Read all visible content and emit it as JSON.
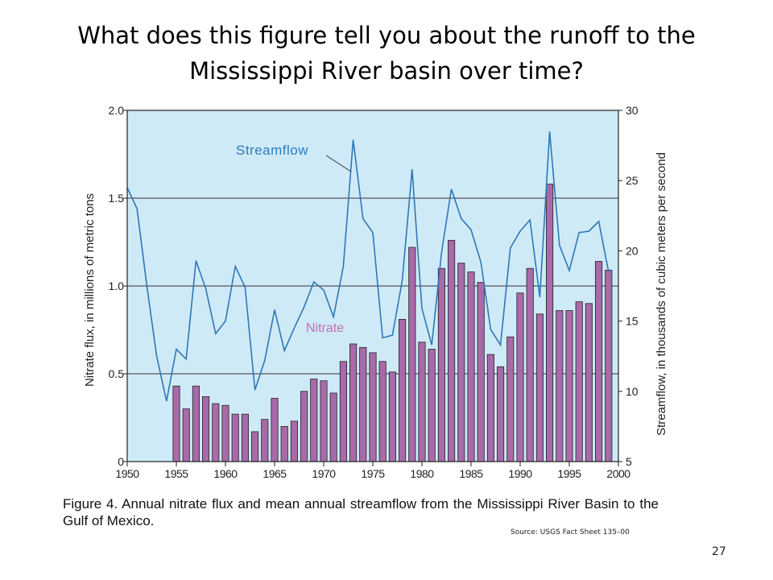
{
  "slide": {
    "title_line1": "What does this figure tell you about the runoff to the",
    "title_line2": "Mississippi River basin over time?",
    "caption": "Figure 4.  Annual nitrate flux and mean annual streamflow from the Mississippi River Basin to the Gulf of Mexico.",
    "source": "Source:  USGS Fact Sheet 135–00",
    "page_number": "27"
  },
  "chart_data": {
    "type": "bar",
    "title": "",
    "xlabel": "",
    "ylabel": "Nitrate flux, in millions of metric tons",
    "y2label": "Streamflow, in thousands of cubic meters per second",
    "xlim": [
      1950,
      2000
    ],
    "ylim": [
      0,
      2.0
    ],
    "y2lim": [
      5,
      30
    ],
    "x_ticks": [
      "1950",
      "1955",
      "1960",
      "1965",
      "1970",
      "1975",
      "1980",
      "1985",
      "1990",
      "1995",
      "2000"
    ],
    "y_ticks": [
      "0",
      "0.5",
      "1.0",
      "1.5",
      "2.0"
    ],
    "y2_ticks": [
      "5",
      "10",
      "15",
      "20",
      "25",
      "30"
    ],
    "gridlines_y": [
      0.5,
      1.0,
      1.5
    ],
    "background_color": "#cfeaf7",
    "series": [
      {
        "name": "Nitrate",
        "kind": "bar",
        "axis": "left",
        "color": "#a86aa8",
        "label_color": "#c070b0",
        "x": [
          1955,
          1956,
          1957,
          1958,
          1959,
          1960,
          1961,
          1962,
          1963,
          1964,
          1965,
          1966,
          1967,
          1968,
          1969,
          1970,
          1971,
          1972,
          1973,
          1974,
          1975,
          1976,
          1977,
          1978,
          1979,
          1980,
          1981,
          1982,
          1983,
          1984,
          1985,
          1986,
          1987,
          1988,
          1989,
          1990,
          1991,
          1992,
          1993,
          1994,
          1995,
          1996,
          1997,
          1998,
          1999
        ],
        "values": [
          0.43,
          0.3,
          0.43,
          0.37,
          0.33,
          0.32,
          0.27,
          0.27,
          0.17,
          0.24,
          0.36,
          0.2,
          0.23,
          0.4,
          0.47,
          0.46,
          0.39,
          0.57,
          0.67,
          0.65,
          0.62,
          0.57,
          0.51,
          0.81,
          1.22,
          0.68,
          0.64,
          1.1,
          1.26,
          1.13,
          1.08,
          1.02,
          0.61,
          0.54,
          0.71,
          0.96,
          1.1,
          0.84,
          1.58,
          0.86,
          0.86,
          0.91,
          0.9,
          1.14,
          1.09
        ]
      },
      {
        "name": "Streamflow",
        "kind": "line",
        "axis": "right",
        "color": "#2e78b6",
        "label_color": "#2e7bbd",
        "x": [
          1950,
          1951,
          1952,
          1953,
          1954,
          1955,
          1956,
          1957,
          1958,
          1959,
          1960,
          1961,
          1962,
          1963,
          1964,
          1965,
          1966,
          1967,
          1968,
          1969,
          1970,
          1971,
          1972,
          1973,
          1974,
          1975,
          1976,
          1977,
          1978,
          1979,
          1980,
          1981,
          1982,
          1983,
          1984,
          1985,
          1986,
          1987,
          1988,
          1989,
          1990,
          1991,
          1992,
          1993,
          1994,
          1995,
          1996,
          1997,
          1998,
          1999
        ],
        "values": [
          24.5,
          23.0,
          17.5,
          12.5,
          9.3,
          13.0,
          12.3,
          19.3,
          17.3,
          14.1,
          15.0,
          18.9,
          17.4,
          10.1,
          12.2,
          15.8,
          12.9,
          14.5,
          16.0,
          17.8,
          17.2,
          15.3,
          18.9,
          27.9,
          22.3,
          21.3,
          13.8,
          14.0,
          17.9,
          25.8,
          15.9,
          13.3,
          19.9,
          24.4,
          22.3,
          21.5,
          19.2,
          14.4,
          13.3,
          20.2,
          21.4,
          22.2,
          16.7,
          28.5,
          20.4,
          18.6,
          21.3,
          21.4,
          22.1,
          18.5
        ]
      }
    ],
    "annotations": [
      {
        "text": "Streamflow",
        "series": "Streamflow"
      },
      {
        "text": "Nitrate",
        "series": "Nitrate"
      }
    ]
  }
}
